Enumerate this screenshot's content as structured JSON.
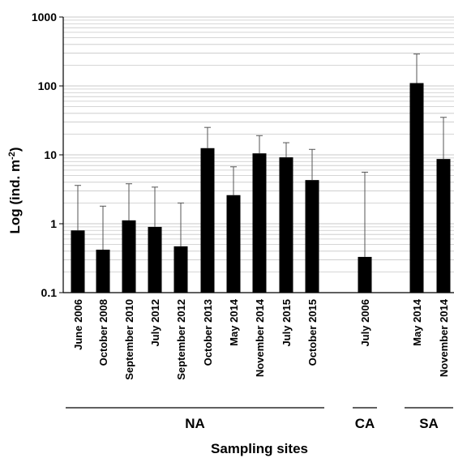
{
  "chart_data": {
    "type": "bar",
    "title": "",
    "ylabel_main": "Log (ind. m",
    "ylabel_sup": "-2",
    "ylabel_close": ")",
    "xlabel": "Sampling sites",
    "y_scale": "log",
    "ylim": [
      0.1,
      1000
    ],
    "y_ticks": [
      "0.1",
      "1",
      "10",
      "100",
      "1000"
    ],
    "grid": true,
    "bar_color": "#000000",
    "grid_color": "#c8c8c8",
    "error_bar_color": "#555555",
    "categories": [
      "June 2006",
      "October 2008",
      "September 2010",
      "July 2012",
      "September 2012",
      "October 2013",
      "May 2014",
      "November 2014",
      "July 2015",
      "October 2015",
      "July 2006",
      "May 2014",
      "November 2014"
    ],
    "values": [
      0.8,
      0.42,
      1.12,
      0.9,
      0.47,
      12.5,
      2.6,
      10.5,
      9.2,
      4.3,
      0.33,
      110,
      8.7
    ],
    "error_upper": [
      3.6,
      1.8,
      3.8,
      3.4,
      2.0,
      25,
      6.7,
      19,
      15,
      12,
      5.6,
      290,
      35
    ],
    "groups": [
      {
        "label": "NA",
        "start": 0,
        "end": 9
      },
      {
        "label": "CA",
        "start": 10,
        "end": 10
      },
      {
        "label": "SA",
        "start": 11,
        "end": 12
      }
    ]
  }
}
